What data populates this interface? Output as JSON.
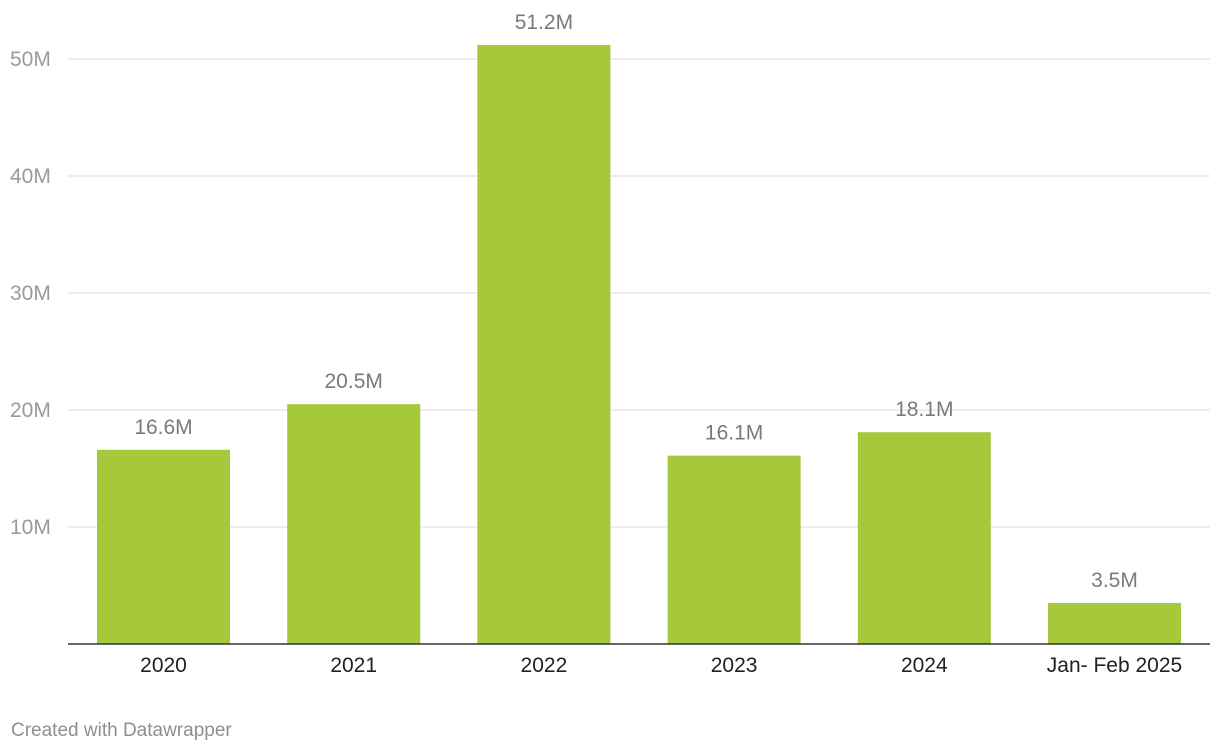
{
  "chart_data": {
    "type": "bar",
    "categories": [
      "2020",
      "2021",
      "2022",
      "2023",
      "2024",
      "Jan- Feb 2025"
    ],
    "values": [
      16.6,
      20.5,
      51.2,
      16.1,
      18.1,
      3.5
    ],
    "value_labels": [
      "16.6M",
      "20.5M",
      "51.2M",
      "16.1M",
      "18.1M",
      "3.5M"
    ],
    "y_ticks": [
      {
        "value": 10,
        "label": "10M"
      },
      {
        "value": 20,
        "label": "20M"
      },
      {
        "value": 30,
        "label": "30M"
      },
      {
        "value": 40,
        "label": "40M"
      },
      {
        "value": 50,
        "label": "50M"
      }
    ],
    "ylim": [
      0,
      50
    ],
    "grid": true,
    "colors": {
      "bar": "#a5c93a"
    }
  },
  "footer": {
    "credit": "Created with Datawrapper"
  }
}
